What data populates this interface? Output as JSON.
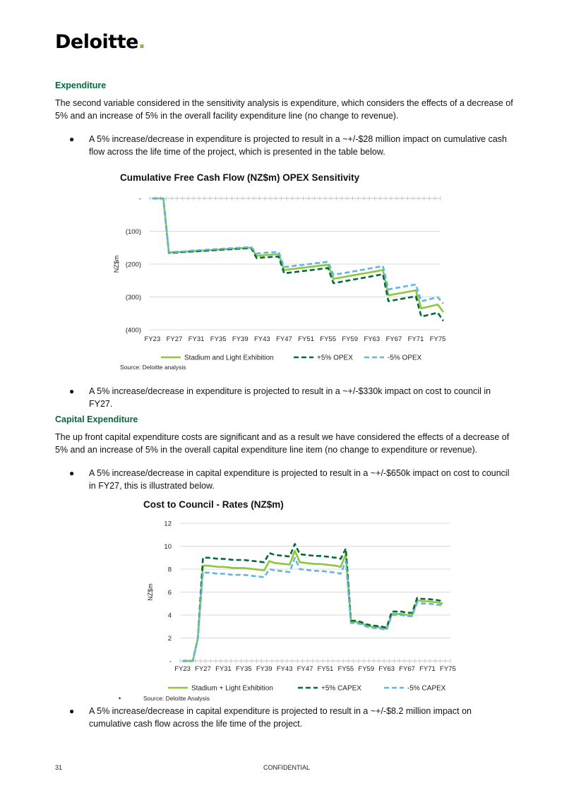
{
  "brand": {
    "logo_text": "Deloitte",
    "logo_dot": ".",
    "accent": "#86bc25",
    "heading_color": "#046a38"
  },
  "sections": {
    "expenditure": {
      "heading": "Expenditure",
      "paragraph": "The second variable considered in the sensitivity analysis is expenditure, which considers the effects of a decrease of 5% and an increase of 5% in the overall facility expenditure line (no change to revenue).",
      "bullet1": "A 5% increase/decrease in expenditure is projected to result in a ~+/-$28 million impact on cumulative cash flow across the life time of the project, which is presented in the table below.",
      "bullet2": "A 5% increase/decrease in expenditure is projected to result in a ~+/-$330k impact on cost to council in FY27."
    },
    "capex": {
      "heading": "Capital Expenditure",
      "paragraph": "The up front capital expenditure costs are significant and as a result we have considered the effects of a decrease of 5% and an increase of 5% in the overall capital expenditure line item (no change to expenditure or revenue).",
      "bullet1": "A 5% increase/decrease in capital expenditure is projected to result in a ~+/-$650k impact on cost to council in FY27, this is illustrated below.",
      "bullet2": "A 5% increase/decrease in capital expenditure is projected to result in a ~+/-$8.2 million impact on cumulative cash flow across the life time of the project."
    }
  },
  "chart1_source": "Source: Deloitte analysis",
  "chart2_source": "Source: Deloitte Analysis",
  "chart2_stray_bullet": "•",
  "footer": {
    "page_number": "31",
    "label": "CONFIDENTIAL"
  },
  "chart_data": [
    {
      "type": "line",
      "title": "Cumulative Free Cash Flow (NZ$m) OPEX Sensitivity",
      "ylabel": "NZ$m",
      "xlabel": "",
      "ylim": [
        -400,
        0
      ],
      "yticks": [
        0,
        -100,
        -200,
        -300,
        -400
      ],
      "ytick_labels": [
        "-",
        "(100)",
        "(200)",
        "(300)",
        "(400)"
      ],
      "x_tick_labels": [
        "FY23",
        "FY27",
        "FY31",
        "FY35",
        "FY39",
        "FY43",
        "FY47",
        "FY51",
        "FY55",
        "FY59",
        "FY63",
        "FY67",
        "FY71",
        "FY75"
      ],
      "x_start_year": 23,
      "x_end_year": 76,
      "grid": true,
      "legend": "bottom",
      "series": [
        {
          "name": "Stadium and Light Exhibition",
          "color": "#8dc63f",
          "dash": "solid",
          "values": [
            0,
            0,
            0,
            -165,
            -164,
            -163,
            -162,
            -161,
            -160,
            -159,
            -158,
            -157,
            -156,
            -155,
            -154,
            -153,
            -152,
            -151,
            -150,
            -175,
            -173,
            -172,
            -171,
            -170,
            -218,
            -216,
            -214,
            -212,
            -210,
            -208,
            -206,
            -204,
            -202,
            -245,
            -242,
            -239,
            -236,
            -233,
            -230,
            -227,
            -224,
            -221,
            -218,
            -295,
            -292,
            -289,
            -286,
            -283,
            -280,
            -335,
            -331,
            -327,
            -323,
            -346
          ]
        },
        {
          "name": "+5% OPEX",
          "color": "#046a38",
          "dash": "dashed",
          "values": [
            0,
            0,
            0,
            -166,
            -165,
            -164,
            -163,
            -162,
            -161,
            -160,
            -159,
            -158,
            -157,
            -156,
            -155,
            -154,
            -153,
            -152,
            -151,
            -182,
            -180,
            -179,
            -178,
            -177,
            -228,
            -226,
            -224,
            -222,
            -220,
            -218,
            -216,
            -214,
            -212,
            -258,
            -255,
            -252,
            -249,
            -246,
            -243,
            -240,
            -237,
            -234,
            -231,
            -313,
            -310,
            -307,
            -304,
            -301,
            -298,
            -360,
            -356,
            -352,
            -348,
            -373
          ]
        },
        {
          "name": "-5% OPEX",
          "color": "#62b5e5",
          "dash": "dashed",
          "values": [
            0,
            0,
            0,
            -164,
            -163,
            -162,
            -161,
            -159,
            -158,
            -157,
            -156,
            -155,
            -154,
            -153,
            -152,
            -151,
            -150,
            -149,
            -148,
            -168,
            -166,
            -165,
            -164,
            -163,
            -209,
            -207,
            -205,
            -203,
            -201,
            -199,
            -197,
            -195,
            -193,
            -233,
            -230,
            -227,
            -224,
            -221,
            -218,
            -215,
            -212,
            -209,
            -206,
            -277,
            -274,
            -271,
            -268,
            -265,
            -262,
            -313,
            -309,
            -305,
            -301,
            -320
          ]
        }
      ]
    },
    {
      "type": "line",
      "title": "Cost to Council - Rates (NZ$m)",
      "ylabel": "NZ$m",
      "xlabel": "",
      "ylim": [
        0,
        12
      ],
      "yticks": [
        0,
        2,
        4,
        6,
        8,
        10,
        12
      ],
      "ytick_labels": [
        "-",
        "2",
        "4",
        "6",
        "8",
        "10",
        "12"
      ],
      "x_tick_labels": [
        "FY23",
        "FY27",
        "FY31",
        "FY35",
        "FY39",
        "FY43",
        "FY47",
        "FY51",
        "FY55",
        "FY59",
        "FY63",
        "FY67",
        "FY71",
        "FY75"
      ],
      "x_start_year": 23,
      "x_end_year": 76,
      "grid": true,
      "legend": "bottom",
      "series": [
        {
          "name": "Stadium + Light Exhibition",
          "color": "#8dc63f",
          "dash": "solid",
          "values": [
            0,
            0,
            0,
            2,
            8.3,
            8.3,
            8.25,
            8.2,
            8.2,
            8.15,
            8.1,
            8.1,
            8.1,
            8.05,
            8.0,
            7.95,
            7.9,
            8.7,
            8.55,
            8.5,
            8.45,
            8.4,
            9.6,
            8.6,
            8.55,
            8.5,
            8.45,
            8.45,
            8.4,
            8.35,
            8.3,
            8.2,
            9.3,
            3.4,
            3.4,
            3.3,
            3.1,
            3.0,
            2.95,
            2.9,
            2.8,
            4.1,
            4.1,
            4.1,
            4.0,
            4.0,
            5.3,
            5.2,
            5.2,
            5.15,
            5.1,
            5.0
          ]
        },
        {
          "name": "+5% CAPEX",
          "color": "#046a38",
          "dash": "dashed",
          "values": [
            0,
            0,
            0,
            2,
            9.0,
            9.0,
            8.95,
            8.9,
            8.9,
            8.85,
            8.8,
            8.8,
            8.8,
            8.75,
            8.7,
            8.65,
            8.6,
            9.4,
            9.25,
            9.2,
            9.15,
            9.1,
            10.2,
            9.3,
            9.25,
            9.2,
            9.15,
            9.15,
            9.1,
            9.05,
            9.0,
            8.9,
            9.8,
            3.5,
            3.5,
            3.4,
            3.2,
            3.1,
            3.05,
            3.0,
            2.9,
            4.3,
            4.3,
            4.3,
            4.2,
            4.2,
            5.5,
            5.4,
            5.4,
            5.35,
            5.3,
            5.2
          ]
        },
        {
          "name": "-5% CAPEX",
          "color": "#62b5e5",
          "dash": "dashed",
          "values": [
            0,
            0,
            0,
            2,
            7.7,
            7.7,
            7.65,
            7.6,
            7.6,
            7.55,
            7.5,
            7.5,
            7.5,
            7.45,
            7.4,
            7.35,
            7.3,
            8.0,
            7.9,
            7.85,
            7.8,
            7.75,
            9.0,
            8.0,
            7.95,
            7.9,
            7.85,
            7.85,
            7.8,
            7.75,
            7.7,
            7.6,
            8.7,
            3.3,
            3.3,
            3.2,
            3.0,
            2.9,
            2.85,
            2.8,
            2.7,
            4.0,
            4.0,
            4.0,
            3.9,
            3.9,
            5.1,
            5.0,
            5.0,
            4.95,
            4.9,
            4.85
          ]
        }
      ]
    }
  ]
}
